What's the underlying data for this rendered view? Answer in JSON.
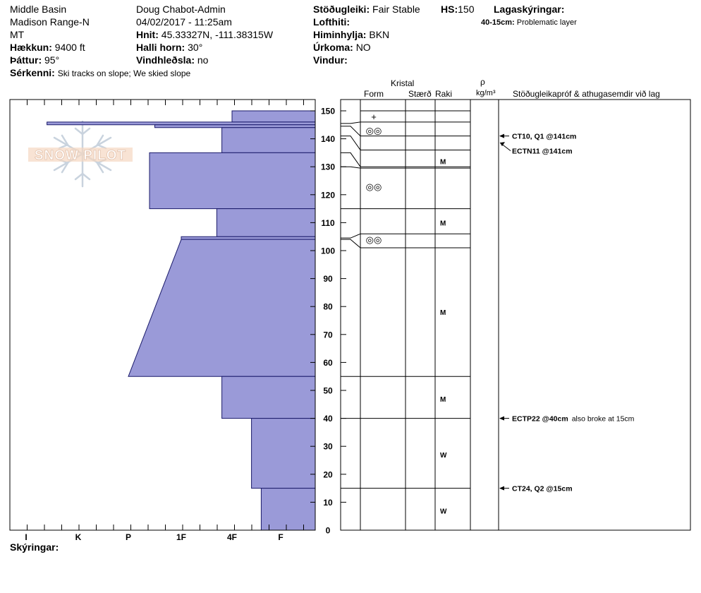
{
  "header": {
    "location": "Middle Basin",
    "range": "Madison Range-N",
    "state": "MT",
    "elevation_label": "Hækkun:",
    "elevation_value": "9400 ft",
    "aspect_label": "Þáttur:",
    "aspect_value": "95°",
    "features_label": "Sérkenni:",
    "features_value": "Ski tracks on slope; We skied slope",
    "observer": "Doug Chabot-Admin",
    "datetime": "04/02/2017 - 11:25am",
    "coords_label": "Hnit:",
    "coords_value": "45.33327N, -111.38315W",
    "slope_label": "Halli horn:",
    "slope_value": "30°",
    "wind_loading_label": "Vindhleðsla:",
    "wind_loading_value": "no",
    "stability_label": "Stöðugleiki:",
    "stability_value": "Fair Stable",
    "hs_label": "HS:",
    "hs_value": "150",
    "air_temp_label": "Lofthiti:",
    "sky_label": "Himinhylja:",
    "sky_value": "BKN",
    "precip_label": "Úrkoma:",
    "precip_value": "NO",
    "wind_label": "Vindur:",
    "layer_notes_label": "Lagaskýringar:",
    "layer_note_range": "40-15cm:",
    "layer_note_text": "Problematic layer"
  },
  "columns": {
    "crystal": "Kristal",
    "form": "Form",
    "size": "Stærð",
    "moisture": "Raki",
    "rho": "ρ",
    "density_unit": "kg/m³",
    "tests": "Stöðugleikapróf & athugasemdir við lag"
  },
  "footer": {
    "legend_label": "Skýringar:"
  },
  "logo_text": "SNOW PILOT",
  "chart_data": {
    "type": "step-profile",
    "title": "",
    "ylabel": "",
    "xlabel": "",
    "ylim": [
      0,
      155
    ],
    "y_ticks": [
      0,
      10,
      20,
      30,
      40,
      50,
      60,
      70,
      80,
      90,
      100,
      110,
      120,
      130,
      140,
      150
    ],
    "hardness_scale": [
      "I",
      "K",
      "P",
      "1F",
      "4F",
      "F"
    ],
    "hardness_profile": [
      {
        "top": 150,
        "bottom": 146,
        "hardness": 4.0
      },
      {
        "top": 146,
        "bottom": 145,
        "hardness": 0.4
      },
      {
        "top": 145,
        "bottom": 144,
        "hardness": 2.5
      },
      {
        "top": 144,
        "bottom": 135,
        "hardness": 3.8
      },
      {
        "top": 135,
        "bottom": 115,
        "hardness": 2.4
      },
      {
        "top": 115,
        "bottom": 105,
        "hardness": 3.7
      },
      {
        "top": 105,
        "bottom": 104,
        "hardness": 3.0
      },
      {
        "top": 104,
        "bottom": 55,
        "hardness_top": 3.0,
        "hardness_bottom": 2.0
      },
      {
        "top": 55,
        "bottom": 40,
        "hardness": 3.8
      },
      {
        "top": 40,
        "bottom": 15,
        "hardness": 4.4
      },
      {
        "top": 15,
        "bottom": 0,
        "hardness": 4.6
      }
    ],
    "layer_boundaries": [
      150,
      146,
      145,
      141,
      135,
      130,
      115,
      106,
      101,
      55,
      40,
      15,
      0
    ],
    "grain_forms": [
      {
        "depth": 148,
        "symbol": "+"
      },
      {
        "depth": 143,
        "symbol": "◎◎"
      },
      {
        "depth": 123,
        "symbol": "◎◎"
      },
      {
        "depth": 104,
        "symbol": "◎◎"
      }
    ],
    "moisture": [
      {
        "depth": 132,
        "value": "M"
      },
      {
        "depth": 110,
        "value": "M"
      },
      {
        "depth": 78,
        "value": "M"
      },
      {
        "depth": 47,
        "value": "M"
      },
      {
        "depth": 27,
        "value": "W"
      },
      {
        "depth": 7,
        "value": "W"
      }
    ],
    "tests": [
      {
        "depth": 141,
        "label": "CT10, Q1 @141cm",
        "extra": ""
      },
      {
        "depth": 141,
        "label": "ECTN11 @141cm",
        "extra": ""
      },
      {
        "depth": 40,
        "label": "ECTP22 @40cm",
        "extra": "also broke at 15cm"
      },
      {
        "depth": 15,
        "label": "CT24, Q2 @15cm",
        "extra": ""
      }
    ]
  }
}
